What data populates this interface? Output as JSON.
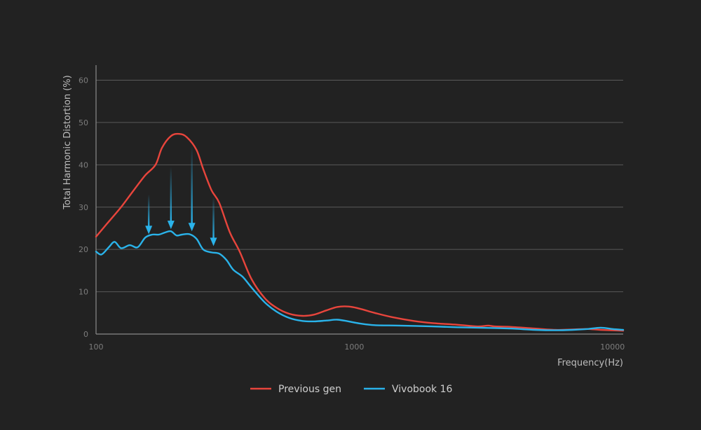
{
  "chart_data": {
    "type": "line",
    "xlabel": "Frequency(Hz)",
    "ylabel": "Total Harmonic Distortion (%)",
    "xscale": "log",
    "xlim": [
      100,
      11000
    ],
    "ylim": [
      0,
      60
    ],
    "xticks": [
      {
        "value": 100,
        "label": "100"
      },
      {
        "value": 1000,
        "label": "1000"
      },
      {
        "value": 10000,
        "label": "10000"
      }
    ],
    "yticks": [
      0,
      10,
      20,
      30,
      40,
      50,
      60
    ],
    "grid": "horizontal",
    "legend": "bottom-center",
    "series": [
      {
        "name": "Previous gen",
        "color": "#e8453c",
        "x": [
          100,
          110,
          125,
          140,
          155,
          170,
          180,
          195,
          210,
          225,
          245,
          260,
          280,
          300,
          330,
          360,
          400,
          450,
          500,
          560,
          630,
          700,
          780,
          860,
          950,
          1050,
          1200,
          1400,
          1700,
          2000,
          2500,
          3000,
          3300,
          3500,
          4000,
          5000,
          6000,
          7000,
          8000,
          9000,
          11000
        ],
        "y": [
          23,
          26,
          30,
          34,
          37.5,
          40,
          44,
          46.8,
          47.3,
          46.5,
          43.5,
          39,
          34,
          31,
          24,
          19.5,
          13,
          8.5,
          6.2,
          4.8,
          4.3,
          4.6,
          5.6,
          6.4,
          6.5,
          6.0,
          5.0,
          4.0,
          3.1,
          2.6,
          2.2,
          1.8,
          2.0,
          1.8,
          1.7,
          1.3,
          1.0,
          1.1,
          1.2,
          1.0,
          0.8
        ]
      },
      {
        "name": "Vivobook 16",
        "color": "#2ab3ea",
        "x": [
          100,
          105,
          112,
          118,
          125,
          135,
          145,
          155,
          165,
          175,
          185,
          195,
          205,
          215,
          230,
          245,
          260,
          280,
          300,
          320,
          340,
          370,
          400,
          450,
          500,
          560,
          630,
          700,
          780,
          860,
          950,
          1050,
          1200,
          1500,
          2000,
          2500,
          3000,
          4000,
          5000,
          6000,
          7000,
          8000,
          9000,
          10000,
          11000
        ],
        "y": [
          19.5,
          18.8,
          20.5,
          21.8,
          20.3,
          21.0,
          20.5,
          22.8,
          23.5,
          23.5,
          24.0,
          24.3,
          23.3,
          23.5,
          23.6,
          22.5,
          20.0,
          19.3,
          19.0,
          17.5,
          15.2,
          13.5,
          11.0,
          7.5,
          5.3,
          3.8,
          3.1,
          3.0,
          3.2,
          3.4,
          3.0,
          2.5,
          2.1,
          2.0,
          1.8,
          1.6,
          1.5,
          1.3,
          1.0,
          0.9,
          1.0,
          1.2,
          1.5,
          1.2,
          1.0
        ]
      }
    ],
    "annotations": [
      {
        "type": "arrow",
        "x": 160,
        "from": 33,
        "to": 23.6,
        "color": "#2ab3ea"
      },
      {
        "type": "arrow",
        "x": 195,
        "from": 39.5,
        "to": 24.8,
        "color": "#2ab3ea"
      },
      {
        "type": "arrow",
        "x": 235,
        "from": 44.5,
        "to": 24.3,
        "color": "#2ab3ea"
      },
      {
        "type": "arrow",
        "x": 285,
        "from": 32.5,
        "to": 20.8,
        "color": "#2ab3ea"
      }
    ]
  },
  "legend": {
    "items": [
      {
        "label": "Previous gen",
        "color": "#e8453c"
      },
      {
        "label": "Vivobook 16",
        "color": "#2ab3ea"
      }
    ]
  }
}
